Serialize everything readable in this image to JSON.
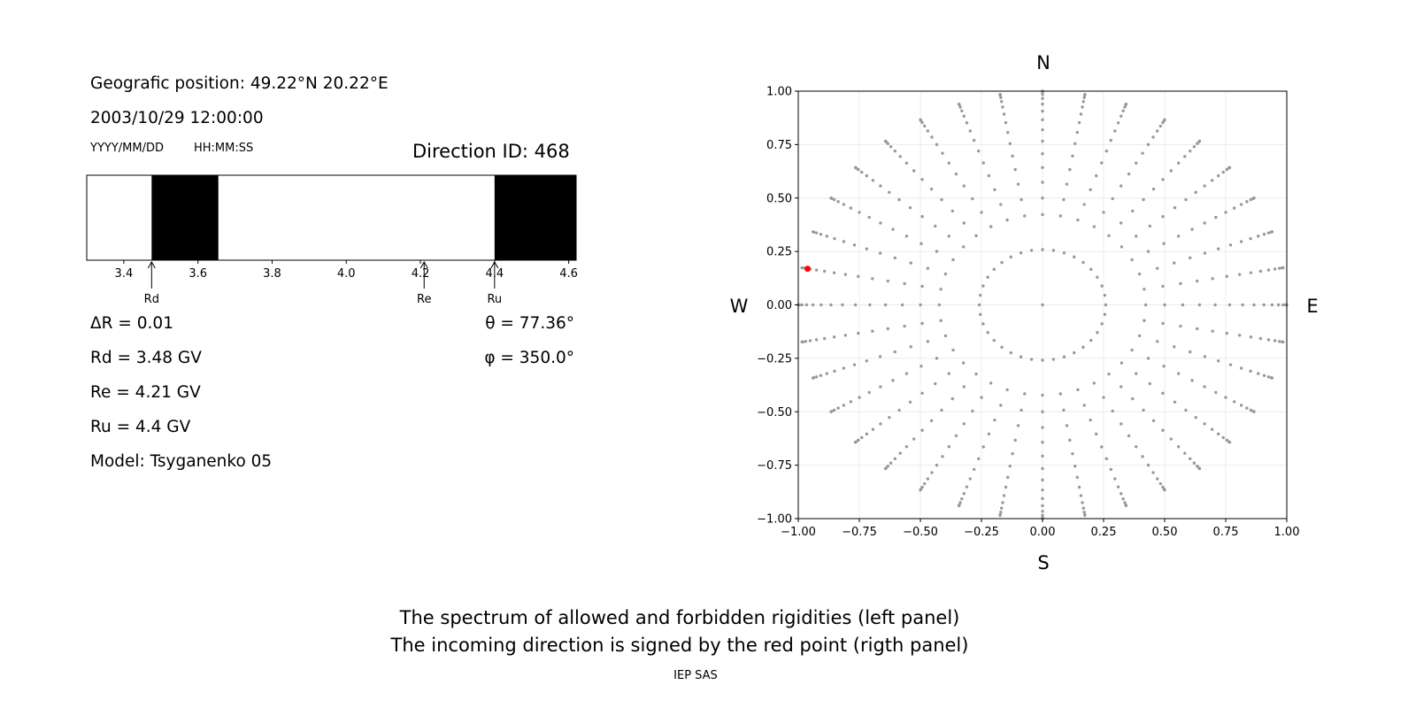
{
  "left_panel": {
    "position_line": "Geografic position: 49.22°N 20.22°E",
    "datetime": "2003/10/29 12:00:00",
    "date_format": "YYYY/MM/DD",
    "time_format": "HH:MM:SS",
    "direction_id": "Direction ID: 468",
    "delta_r": "ΔR = 0.01",
    "rd": "Rd = 3.48 GV",
    "re": "Re = 4.21 GV",
    "ru": "Ru = 4.4 GV",
    "model": "Model: Tsyganenko 05",
    "theta": "θ = 77.36°",
    "phi": "φ = 350.0°"
  },
  "right_panel": {
    "north": "N",
    "south": "S",
    "west": "W",
    "east": "E"
  },
  "caption": {
    "line1": "The spectrum of allowed and forbidden rigidities (left panel)",
    "line2": "The incoming direction is signed by the red point (rigth panel)",
    "credit": "IEP SAS"
  },
  "chart_data": [
    {
      "type": "bar",
      "xlim": [
        3.3,
        4.62
      ],
      "xticks": [
        3.4,
        3.6,
        3.8,
        4.0,
        4.2,
        4.4,
        4.6
      ],
      "xtick_labels": [
        "3.4",
        "3.6",
        "3.8",
        "4.0",
        "4.2",
        "4.4",
        "4.6"
      ],
      "forbidden_bands": [
        [
          3.475,
          3.655
        ],
        [
          4.4,
          4.62
        ]
      ],
      "markers": [
        {
          "label": "Rd",
          "x": 3.475
        },
        {
          "label": "Re",
          "x": 4.21
        },
        {
          "label": "Ru",
          "x": 4.4
        }
      ],
      "band_color": "#000000"
    },
    {
      "type": "scatter",
      "xlim": [
        -1.0,
        1.0
      ],
      "ylim": [
        -1.0,
        1.0
      ],
      "xticks": [
        -1.0,
        -0.75,
        -0.5,
        -0.25,
        0.0,
        0.25,
        0.5,
        0.75,
        1.0
      ],
      "xtick_labels": [
        "−1.00",
        "−0.75",
        "−0.50",
        "−0.25",
        "0.00",
        "0.25",
        "0.50",
        "0.75",
        "1.00"
      ],
      "yticks": [
        1.0,
        0.75,
        0.5,
        0.25,
        0.0,
        -0.25,
        -0.5,
        -0.75,
        -1.0
      ],
      "ytick_labels": [
        "1.00",
        "0.75",
        "0.50",
        "0.25",
        "0.00",
        "−0.25",
        "−0.50",
        "−0.75",
        "−1.00"
      ],
      "grid": true,
      "pattern": {
        "zenith_angles_deg": [
          0,
          15,
          25,
          30,
          35,
          40,
          45,
          50,
          55,
          60,
          65,
          70,
          75,
          80,
          85,
          90
        ],
        "azimuth_step_deg": 10,
        "point_color": "#999999"
      },
      "highlighted_point": {
        "x": -0.962,
        "y": 0.169,
        "color": "#ff0000"
      }
    }
  ]
}
